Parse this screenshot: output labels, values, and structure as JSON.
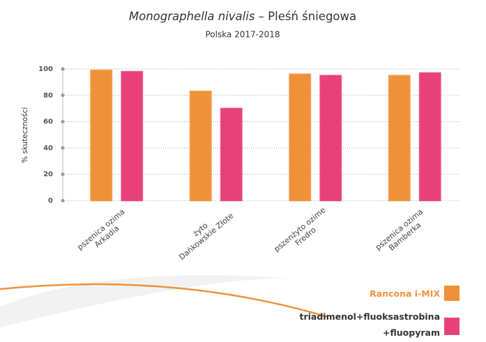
{
  "chart_data": {
    "type": "bar",
    "title": {
      "species": "Monographella nivalis",
      "name": "– Pleśń śniegowa"
    },
    "subtitle": "Polska 2017-2018",
    "y_label": "% skuteczności",
    "categories": [
      [
        "pszenica ozima",
        "Arkadia"
      ],
      [
        "żyto",
        "Dańkowskie Złote"
      ],
      [
        "pszenżyto ozime",
        "Fredro"
      ],
      [
        "pszenica ozima",
        "Bamberka"
      ]
    ],
    "series": [
      {
        "name": "Rancona i-MIX",
        "color": "#f0913a",
        "values": [
          99,
          83,
          96,
          95
        ]
      },
      {
        "name": "triadimenol+fluoksastrobina +fluopyram",
        "color": "#e8417a",
        "values": [
          98,
          70,
          95,
          97
        ]
      }
    ],
    "ylim": [
      0,
      100
    ],
    "yticks": [
      0,
      20,
      40,
      60,
      80,
      100
    ],
    "grid": true
  }
}
